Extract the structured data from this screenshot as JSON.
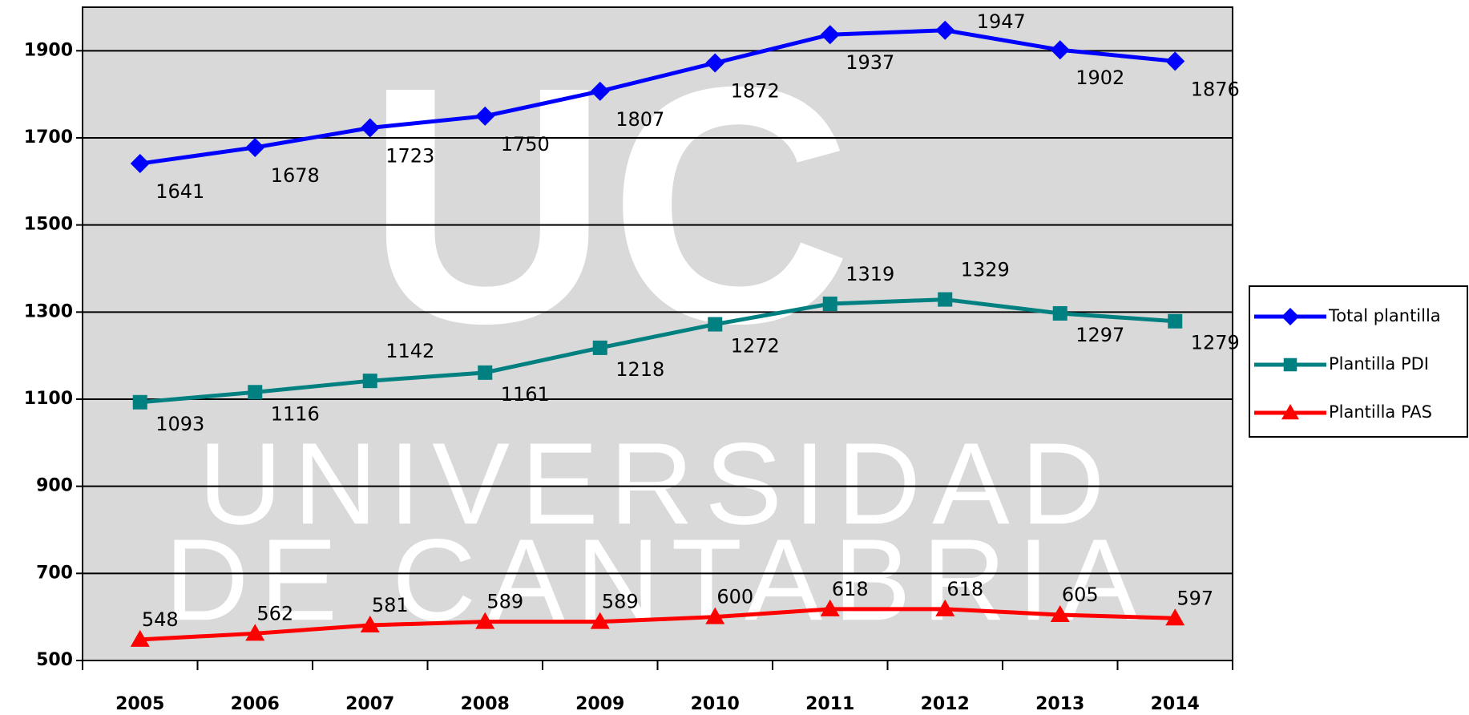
{
  "chart_data": {
    "type": "line",
    "watermark": [
      "UC",
      "UNIVERSIDAD",
      "DE CANTABRIA"
    ],
    "categories": [
      "2005",
      "2006",
      "2007",
      "2008",
      "2009",
      "2010",
      "2011",
      "2012",
      "2013",
      "2014"
    ],
    "series": [
      {
        "name": "Total plantilla",
        "color": "#0000ff",
        "marker": "diamond",
        "values": [
          1641,
          1678,
          1723,
          1750,
          1807,
          1872,
          1937,
          1947,
          1902,
          1876
        ]
      },
      {
        "name": "Plantilla PDI",
        "color": "#008080",
        "marker": "square",
        "values": [
          1093,
          1116,
          1142,
          1161,
          1218,
          1272,
          1319,
          1329,
          1297,
          1279
        ]
      },
      {
        "name": "Plantilla PAS",
        "color": "#ff0000",
        "marker": "triangle",
        "values": [
          548,
          562,
          581,
          589,
          589,
          600,
          618,
          618,
          605,
          597
        ]
      }
    ],
    "ylim": [
      500,
      2000
    ],
    "yticks": [
      500,
      700,
      900,
      1100,
      1300,
      1500,
      1700,
      1900
    ],
    "grid": true,
    "legend": "right"
  }
}
